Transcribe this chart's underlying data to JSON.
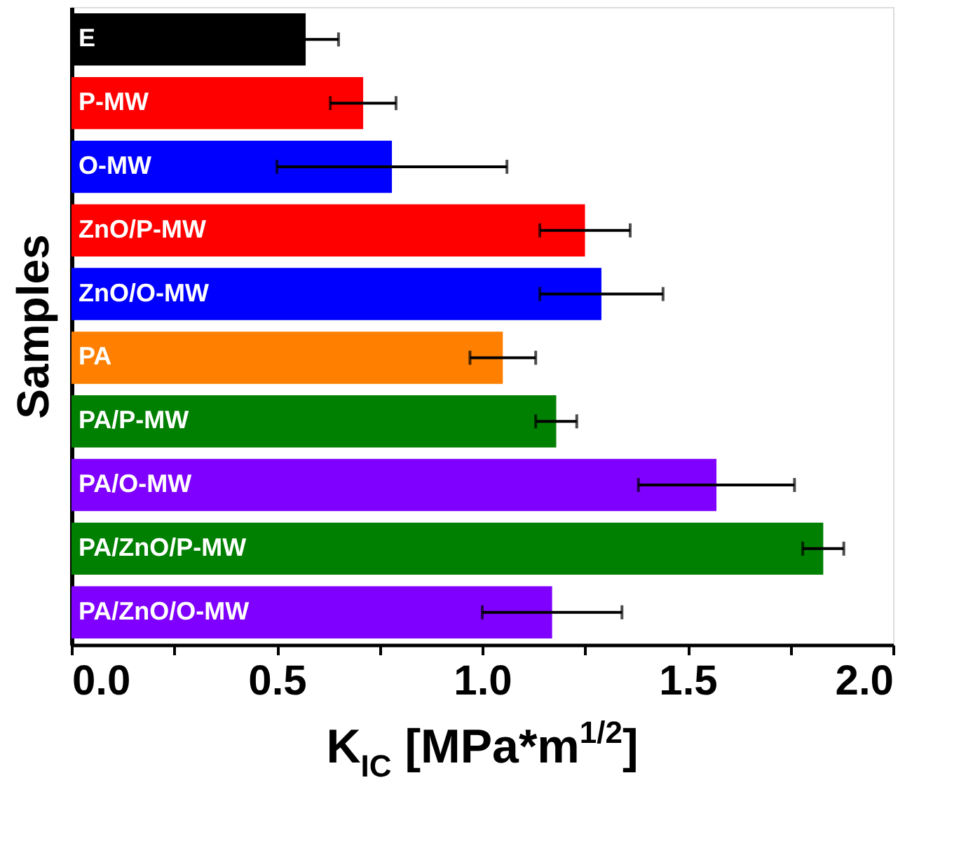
{
  "chart_data": {
    "type": "bar",
    "orientation": "horizontal",
    "xlabel": "K$_{IC}$ [MPa*m$^{1/2}$]",
    "ylabel": "Samples",
    "categories": [
      "E",
      "P-MW",
      "O-MW",
      "ZnO/P-MW",
      "ZnO/O-MW",
      "PA",
      "PA/P-MW",
      "PA/O-MW",
      "PA/ZnO/P-MW",
      "PA/ZnO/O-MW"
    ],
    "values": [
      0.57,
      0.71,
      0.78,
      1.25,
      1.29,
      1.05,
      1.18,
      1.57,
      1.83,
      1.17
    ],
    "errors": [
      0.08,
      0.08,
      0.28,
      0.11,
      0.15,
      0.08,
      0.05,
      0.19,
      0.05,
      0.17
    ],
    "colors": [
      "#000000",
      "#ff0000",
      "#0000ff",
      "#ff0000",
      "#0000ff",
      "#ff8000",
      "#008000",
      "#8000ff",
      "#008000",
      "#8000ff"
    ],
    "xlim": [
      0,
      2
    ],
    "xticks": [
      {
        "value": 0,
        "label": "0.0"
      },
      {
        "value": 0.25,
        "label": null
      },
      0.5,
      {
        "value": 0.75,
        "label": null
      },
      {
        "value": 1,
        "label": "1.0"
      },
      {
        "value": 1.25,
        "label": null
      },
      1.5,
      {
        "value": 1.75,
        "label": null
      },
      {
        "value": 2,
        "label": "2.0"
      }
    ],
    "grid": false
  }
}
